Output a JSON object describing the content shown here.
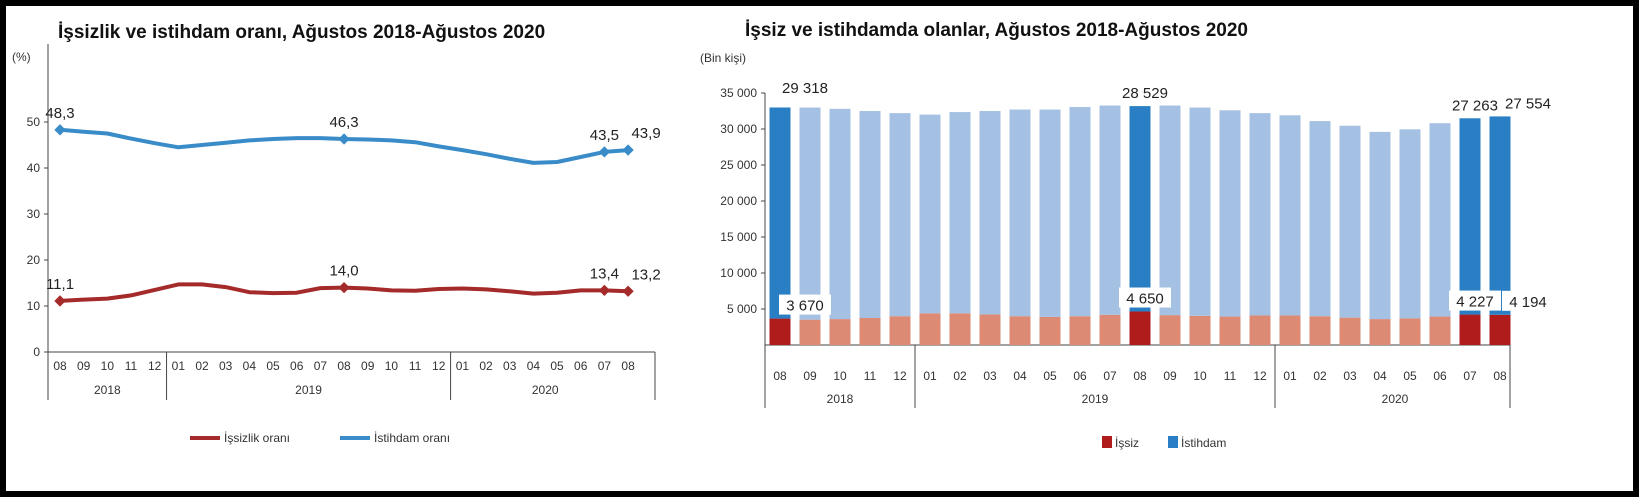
{
  "chart_data": [
    {
      "type": "line",
      "title": "İşsizlik ve istihdam oranı, Ağustos 2018-Ağustos 2020",
      "ylabel": "(%)",
      "ylim": [
        0,
        55
      ],
      "yticks": [
        0,
        10,
        20,
        30,
        40,
        50
      ],
      "grid": false,
      "legend_position": "bottom",
      "months": [
        "08",
        "09",
        "10",
        "11",
        "12",
        "01",
        "02",
        "03",
        "04",
        "05",
        "06",
        "07",
        "08",
        "09",
        "10",
        "11",
        "12",
        "01",
        "02",
        "03",
        "04",
        "05",
        "06",
        "07",
        "08"
      ],
      "years": [
        {
          "label": "2018",
          "span": 5
        },
        {
          "label": "2019",
          "span": 12
        },
        {
          "label": "2020",
          "span": 8
        }
      ],
      "series": [
        {
          "name": "İşsizlik oranı",
          "color": "#a52a2a",
          "values": [
            11.1,
            11.4,
            11.6,
            12.3,
            13.5,
            14.7,
            14.7,
            14.1,
            13.0,
            12.8,
            12.9,
            13.9,
            14.0,
            13.8,
            13.4,
            13.3,
            13.7,
            13.8,
            13.6,
            13.2,
            12.7,
            12.9,
            13.4,
            13.4,
            13.2
          ],
          "labeled": [
            {
              "i": 0,
              "text": "11,1"
            },
            {
              "i": 12,
              "text": "14,0"
            },
            {
              "i": 23,
              "text": "13,4"
            },
            {
              "i": 24,
              "text": "13,2"
            }
          ]
        },
        {
          "name": "İstihdam oranı",
          "color": "#3a8cc8",
          "values": [
            48.3,
            47.9,
            47.5,
            46.4,
            45.4,
            44.5,
            45.0,
            45.5,
            46.0,
            46.3,
            46.5,
            46.5,
            46.3,
            46.2,
            46.0,
            45.6,
            44.7,
            43.9,
            43.0,
            42.0,
            41.1,
            41.3,
            42.4,
            43.5,
            43.9
          ],
          "labeled": [
            {
              "i": 0,
              "text": "48,3"
            },
            {
              "i": 12,
              "text": "46,3"
            },
            {
              "i": 23,
              "text": "43,5"
            },
            {
              "i": 24,
              "text": "43,9"
            }
          ]
        }
      ]
    },
    {
      "type": "bar",
      "stacked": true,
      "title": "İşsiz ve istihdamda olanlar, Ağustos 2018-Ağustos 2020",
      "ylabel": "(Bin kişi)",
      "ylim": [
        0,
        35000
      ],
      "yticks": [
        "5 000",
        "10 000",
        "15 000",
        "20 000",
        "25 000",
        "30 000",
        "35 000"
      ],
      "grid": false,
      "legend_position": "bottom",
      "months": [
        "08",
        "09",
        "10",
        "11",
        "12",
        "01",
        "02",
        "03",
        "04",
        "05",
        "06",
        "07",
        "08",
        "09",
        "10",
        "11",
        "12",
        "01",
        "02",
        "03",
        "04",
        "05",
        "06",
        "07",
        "08"
      ],
      "years": [
        {
          "label": "2018",
          "span": 5
        },
        {
          "label": "2019",
          "span": 12
        },
        {
          "label": "2020",
          "span": 8
        }
      ],
      "highlighted": [
        0,
        12,
        23,
        24
      ],
      "colors": {
        "unemployed": "#b01c1c",
        "unemployed_light": "#dc8a73",
        "employed": "#2a7fc4",
        "employed_light": "#a4c0e3"
      },
      "series": [
        {
          "name": "İşsiz",
          "values": [
            3670,
            3520,
            3600,
            3750,
            4000,
            4400,
            4400,
            4250,
            4000,
            3900,
            4000,
            4200,
            4650,
            4150,
            4050,
            3950,
            4100,
            4100,
            4000,
            3800,
            3600,
            3700,
            3950,
            4227,
            4194
          ],
          "labels": {
            "0": "3 670",
            "12": "4 650",
            "23": "4 227",
            "24": "4 194"
          }
        },
        {
          "name": "İstihdam",
          "values": [
            29318,
            29460,
            29200,
            28750,
            28200,
            27600,
            27950,
            28250,
            28700,
            28800,
            29050,
            29060,
            28529,
            29110,
            28930,
            28650,
            28100,
            27800,
            27100,
            26650,
            26000,
            26250,
            26850,
            27263,
            27554
          ],
          "labels": {
            "0": "29 318",
            "12": "28 529",
            "23": "27 263",
            "24": "27 554"
          }
        }
      ]
    }
  ]
}
